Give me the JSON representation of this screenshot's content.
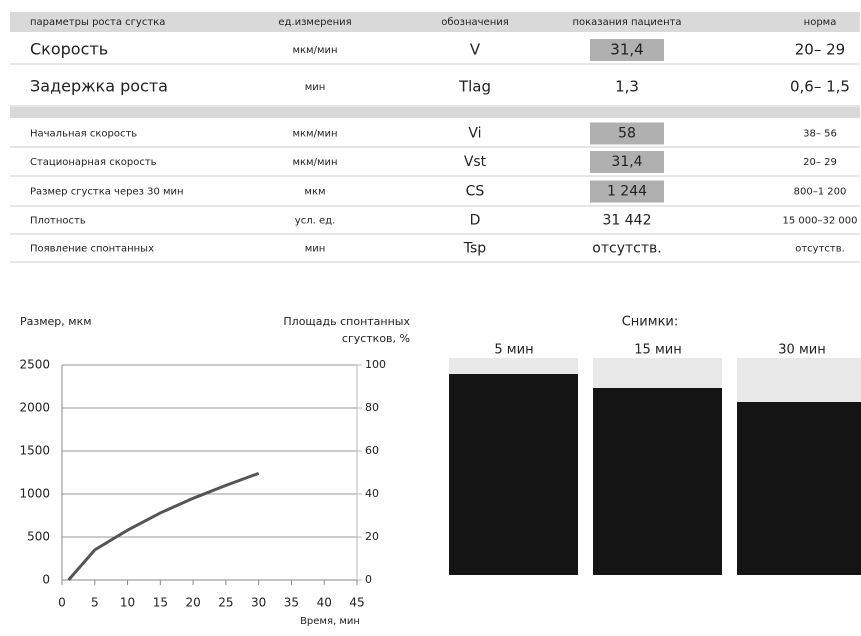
{
  "table": {
    "header": [
      "параметры роста сгустка",
      "ед.измерения",
      "обозначения",
      "показания пациента",
      "норма"
    ],
    "groups": [
      {
        "rows": [
          {
            "cells": [
              "Скорость",
              "мкм/мин",
              "V",
              "31,4",
              "20– 29"
            ],
            "highlighted": true
          },
          {
            "cells": [
              "Задержка роста",
              "мин",
              "Tlag",
              "1,3",
              "0,6– 1,5"
            ],
            "highlighted": false
          }
        ]
      },
      {
        "rows": [
          {
            "cells": [
              "Начальная скорость",
              "мкм/мин",
              "Vi",
              "58",
              "38– 56"
            ],
            "highlighted": true
          },
          {
            "cells": [
              "Стационарная скорость",
              "мкм/мин",
              "Vst",
              "31,4",
              "20– 29"
            ],
            "highlighted": true
          },
          {
            "cells": [
              "Размер сгустка через 30 мин",
              "мкм",
              "CS",
              "1 244",
              "800–1 200"
            ],
            "highlighted": true
          },
          {
            "cells": [
              "Плотность",
              "усл. ед.",
              "D",
              "31 442",
              "15 000–32 000"
            ],
            "highlighted": false
          },
          {
            "cells": [
              "Появление спонтанных",
              "мин",
              "Tsp",
              "отсутств.",
              "отсутств."
            ],
            "highlighted": false
          }
        ]
      }
    ]
  },
  "chart_data": {
    "type": "line",
    "ylabel": "Размер, мкм",
    "y2label": [
      "Площадь спонтанных",
      "сгустков, %"
    ],
    "xlabel": "Время, мин",
    "x": [
      1,
      5,
      10,
      15,
      20,
      25,
      30
    ],
    "series": [
      {
        "color": "#555555",
        "values": [
          0,
          350,
          580,
          780,
          950,
          1100,
          1240
        ]
      }
    ],
    "xlim": [
      0,
      45
    ],
    "xticks": [
      0,
      5,
      10,
      15,
      20,
      25,
      30,
      35,
      40,
      45
    ],
    "ylim": [
      0,
      2500
    ],
    "yticks": [
      0,
      500,
      1000,
      1500,
      2000,
      2500
    ],
    "y2lim": [
      0,
      100
    ],
    "y2ticks": [
      0,
      20,
      40,
      60,
      80,
      100
    ],
    "grid": true
  },
  "photos": {
    "title": "Снимки:",
    "labels": [
      "5 мин",
      "15 мин",
      "30 мин"
    ]
  }
}
